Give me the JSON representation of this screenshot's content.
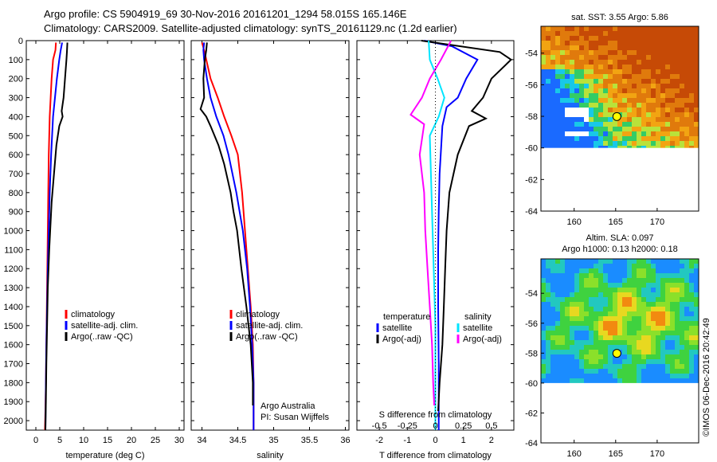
{
  "header": {
    "line1": "Argo profile: CS 5904919_69 30-Nov-2016 20161201_1294 58.015S 165.146E",
    "line2": "Climatology: CARS2009. Satellite-adjusted climatology: synTS_20161129.nc (1.2d earlier)"
  },
  "colors": {
    "climatology": "#ff0000",
    "satellite": "#0000ff",
    "argo": "#000000",
    "sal_satellite": "#00e5ff",
    "sal_argo": "#ff00ff"
  },
  "chart_data": [
    {
      "type": "line",
      "xlabel": "temperature (deg C)",
      "xticks": [
        0,
        5,
        10,
        15,
        20,
        25,
        30
      ],
      "xlim": [
        -2,
        31
      ],
      "ylim": [
        0,
        2050
      ],
      "yticks": [
        0,
        100,
        200,
        300,
        400,
        500,
        600,
        700,
        800,
        900,
        1000,
        1100,
        1200,
        1300,
        1400,
        1500,
        1600,
        1700,
        1800,
        1900,
        2000
      ],
      "legend": [
        "climatology",
        "satellite-adj. clim.",
        "Argo(..raw -QC)"
      ],
      "series": [
        {
          "name": "climatology",
          "color": "#ff0000",
          "x": [
            4.2,
            4.1,
            3.6,
            3.3,
            3.1,
            2.9,
            2.7,
            2.6,
            2.5,
            2.4,
            2.3,
            2.2,
            2.1,
            2.0,
            1.9
          ],
          "y": [
            10,
            50,
            100,
            200,
            300,
            400,
            600,
            800,
            1000,
            1200,
            1400,
            1600,
            1800,
            1950,
            2050
          ]
        },
        {
          "name": "satellite-adj. clim.",
          "color": "#0000ff",
          "x": [
            5.5,
            5.2,
            4.9,
            4.4,
            4.0,
            3.6,
            3.2,
            2.9,
            2.7,
            2.5,
            2.35,
            2.2,
            2.1,
            2.0
          ],
          "y": [
            10,
            50,
            100,
            200,
            300,
            400,
            600,
            800,
            1000,
            1200,
            1400,
            1600,
            1800,
            2050
          ]
        },
        {
          "name": "Argo(..raw -QC)",
          "color": "#000000",
          "x": [
            6.6,
            6.5,
            6.4,
            6.1,
            5.8,
            5.4,
            5.6,
            4.9,
            4.3,
            3.8,
            3.3,
            3.0,
            2.8,
            2.5,
            2.35,
            2.2,
            2.1,
            2.0
          ],
          "y": [
            10,
            60,
            100,
            200,
            300,
            370,
            400,
            450,
            550,
            700,
            850,
            1000,
            1100,
            1300,
            1500,
            1700,
            1900,
            2050
          ]
        }
      ]
    },
    {
      "type": "line",
      "xlabel": "salinity",
      "xticks": [
        34,
        34.5,
        35,
        35.5,
        36
      ],
      "xlim": [
        33.85,
        36.05
      ],
      "ylim": [
        0,
        2050
      ],
      "legend": [
        "climatology",
        "satellite-adj. clim.",
        "Argo(..raw -QC)"
      ],
      "annotation": [
        "Argo Australia",
        "PI: Susan Wijffels"
      ],
      "series": [
        {
          "name": "climatology",
          "color": "#ff0000",
          "x": [
            34.0,
            34.03,
            34.06,
            34.12,
            34.22,
            34.31,
            34.41,
            34.5,
            34.56,
            34.6,
            34.64,
            34.68,
            34.71,
            34.72,
            34.72,
            34.72
          ],
          "y": [
            10,
            50,
            100,
            200,
            300,
            400,
            500,
            600,
            800,
            1000,
            1200,
            1400,
            1600,
            1800,
            2000,
            2050
          ]
        },
        {
          "name": "satellite-adj. clim.",
          "color": "#0000ff",
          "x": [
            34.03,
            34.02,
            34.03,
            34.07,
            34.12,
            34.2,
            34.3,
            34.37,
            34.48,
            34.57,
            34.63,
            34.67,
            34.7,
            34.72,
            34.72
          ],
          "y": [
            10,
            50,
            100,
            200,
            300,
            400,
            500,
            600,
            800,
            1000,
            1200,
            1400,
            1600,
            1800,
            2050
          ]
        },
        {
          "name": "Argo(..raw -QC)",
          "color": "#000000",
          "x": [
            34.07,
            34.06,
            34.04,
            34.02,
            34.03,
            33.98,
            34.06,
            34.12,
            34.23,
            34.31,
            34.4,
            34.44,
            34.49,
            34.55,
            34.62,
            34.68,
            34.71,
            34.71
          ],
          "y": [
            10,
            50,
            100,
            200,
            300,
            360,
            400,
            450,
            550,
            650,
            800,
            900,
            1000,
            1200,
            1400,
            1600,
            1800,
            1920
          ]
        }
      ]
    },
    {
      "type": "line",
      "xlabel": "T difference from climatology",
      "x2label": "S difference from climatology",
      "xticks": [
        -2,
        -1,
        0,
        1,
        2
      ],
      "x2ticks": [
        -0.5,
        -0.25,
        0,
        0.25,
        0.5
      ],
      "xlim": [
        -2.8,
        2.8
      ],
      "ylim": [
        0,
        2050
      ],
      "legend_groups": [
        {
          "title": "temperature",
          "items": [
            "satellite",
            "Argo(-adj)"
          ]
        },
        {
          "title": "salinity",
          "items": [
            "satellite",
            "Argo(-adj)"
          ]
        }
      ],
      "series": [
        {
          "name": "temperature satellite",
          "color": "#0000ff",
          "x": [
            -0.4,
            0.6,
            1.5,
            1.1,
            0.8,
            0.4,
            0.25,
            0.15,
            0.12,
            0.1,
            0.1,
            0.12,
            0.12,
            0.12
          ],
          "y": [
            0,
            30,
            100,
            200,
            300,
            350,
            450,
            700,
            900,
            1100,
            1400,
            1700,
            1900,
            2050
          ]
        },
        {
          "name": "temperature Argo(-adj)",
          "color": "#000000",
          "x": [
            -0.5,
            2.3,
            2.7,
            2.0,
            1.7,
            1.3,
            1.8,
            1.2,
            0.8,
            0.5,
            0.4,
            0.35,
            0.3,
            0.25,
            0.15,
            0.1
          ],
          "y": [
            0,
            60,
            100,
            200,
            300,
            370,
            410,
            450,
            600,
            800,
            1000,
            1200,
            1400,
            1600,
            1800,
            1950
          ]
        },
        {
          "name": "salinity satellite",
          "color": "#00e5ff",
          "x": [
            -0.06,
            -0.05,
            0.02,
            0.08,
            0.03,
            -0.05,
            -0.04,
            -0.03,
            -0.02,
            -0.01,
            0.0,
            0.0,
            0.0,
            0.0
          ],
          "y": [
            0,
            100,
            200,
            300,
            400,
            500,
            700,
            900,
            1100,
            1300,
            1500,
            1700,
            1900,
            2050
          ]
        },
        {
          "name": "salinity Argo(-adj)",
          "color": "#ff00ff",
          "x": [
            0.14,
            0.05,
            -0.05,
            -0.12,
            -0.22,
            -0.1,
            -0.14,
            -0.1,
            -0.09,
            -0.07,
            -0.05,
            -0.03,
            -0.02,
            -0.01
          ],
          "y": [
            0,
            100,
            200,
            300,
            390,
            440,
            600,
            800,
            1000,
            1200,
            1400,
            1600,
            1800,
            1920
          ]
        }
      ]
    },
    {
      "type": "heatmap",
      "title": "sat. SST: 3.55 Argo: 5.86",
      "xticks": [
        160,
        165,
        170
      ],
      "yticks": [
        -54,
        -56,
        -58,
        -60,
        -62,
        -64
      ],
      "xlim": [
        156,
        175
      ],
      "ylim": [
        -64,
        -52.3
      ],
      "data_lat_min": -60,
      "argo_position": {
        "lon": 165.146,
        "lat": -58.015
      }
    },
    {
      "type": "heatmap",
      "title": "Altim. SLA: 0.097",
      "subtitle": "Argo h1000: 0.13 h2000: 0.18",
      "xticks": [
        160,
        165,
        170
      ],
      "yticks": [
        -54,
        -56,
        -58,
        -60,
        -62,
        -64
      ],
      "xlim": [
        156,
        175
      ],
      "ylim": [
        -64,
        -51.7
      ],
      "data_lat_min": -60,
      "argo_position": {
        "lon": 165.146,
        "lat": -58.015
      }
    }
  ],
  "footer": {
    "credit": "©IMOS 06-Dec-2016 20:42:49"
  }
}
